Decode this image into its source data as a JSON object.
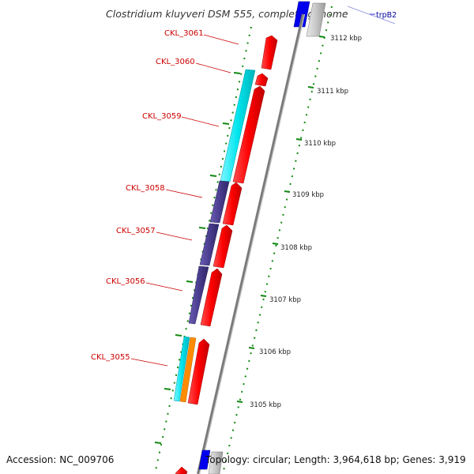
{
  "title": "Clostridium kluyveri DSM 555, complete genome",
  "accession_text": "Accession: NC_009706",
  "summary_text": "Topology: circular; Length: 3,964,618 bp; Genes: 3,919",
  "top_gene": "trpB2",
  "gene_labels": [
    "CKL_3061",
    "CKL_3060",
    "CKL_3059",
    "CKL_3058",
    "CKL_3057",
    "CKL_3056",
    "CKL_3055"
  ],
  "scale_labels": [
    "3112 kbp",
    "3111 kbp",
    "3110 kbp",
    "3109 kbp",
    "3108 kbp",
    "3107 kbp",
    "3106 kbp",
    "3105 kbp"
  ],
  "colors": {
    "gene": "#ff0000",
    "cog_cyan": "#00e5ee",
    "cog_purple": "#4a3d8f",
    "cog_orange": "#ff8c00",
    "blue_gene": "#0000ee",
    "backbone": "#888888",
    "tick_green": "#118811",
    "label_red": "#cc0000"
  }
}
